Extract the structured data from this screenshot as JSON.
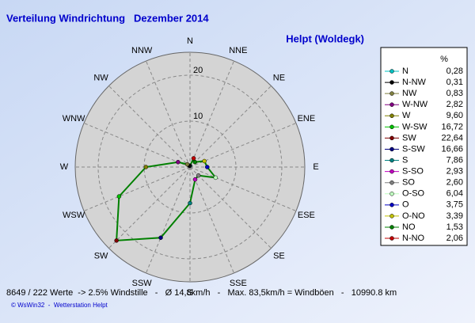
{
  "chart_data": {
    "type": "radar",
    "title": "Verteilung Windrichtung   Dezember 2014",
    "subtitle": "Helpt (Woldegk)",
    "directions": [
      "N",
      "NNE",
      "NE",
      "ENE",
      "E",
      "ESE",
      "SE",
      "SSE",
      "S",
      "SSW",
      "SW",
      "WSW",
      "W",
      "WNW",
      "NW",
      "NNW"
    ],
    "rlim": [
      0,
      25
    ],
    "rticks": [
      10,
      20
    ],
    "grid": true,
    "line_color": "#008000",
    "legend_title": "%",
    "series": [
      {
        "name": "N",
        "color": "#00c0c0",
        "value": 0.28,
        "value_label": "0,28"
      },
      {
        "name": "N-NW",
        "color": "#000000",
        "value": 0.31,
        "value_label": "0,31"
      },
      {
        "name": "NW",
        "color": "#808040",
        "value": 0.83,
        "value_label": "0,83"
      },
      {
        "name": "W-NW",
        "color": "#800080",
        "value": 2.82,
        "value_label": "2,82"
      },
      {
        "name": "W",
        "color": "#808000",
        "value": 9.6,
        "value_label": "9,60"
      },
      {
        "name": "W-SW",
        "color": "#00c000",
        "value": 16.72,
        "value_label": "16,72"
      },
      {
        "name": "SW",
        "color": "#800000",
        "value": 22.64,
        "value_label": "22,64"
      },
      {
        "name": "S-SW",
        "color": "#000080",
        "value": 16.66,
        "value_label": "16,66"
      },
      {
        "name": "S",
        "color": "#008080",
        "value": 7.86,
        "value_label": "7,86"
      },
      {
        "name": "S-SO",
        "color": "#c000c0",
        "value": 2.93,
        "value_label": "2,93"
      },
      {
        "name": "SO",
        "color": "#808080",
        "value": 2.6,
        "value_label": "2,60"
      },
      {
        "name": "O-SO",
        "color": "#c0ffc0",
        "value": 6.04,
        "value_label": "6,04"
      },
      {
        "name": "O",
        "color": "#0000c0",
        "value": 3.75,
        "value_label": "3,75"
      },
      {
        "name": "O-NO",
        "color": "#c0c000",
        "value": 3.39,
        "value_label": "3,39"
      },
      {
        "name": "NO",
        "color": "#008000",
        "value": 1.53,
        "value_label": "1,53"
      },
      {
        "name": "N-NO",
        "color": "#c00000",
        "value": 2.06,
        "value_label": "2,06"
      }
    ],
    "footer": "8649 / 222 Werte  -> 2.5% Windstille   -   Ø 14,8km/h   -   Max. 83,5km/h = Windböen   -   10990.8 km",
    "credit": "© WsWin32  -  Wetterstation Helpt"
  }
}
